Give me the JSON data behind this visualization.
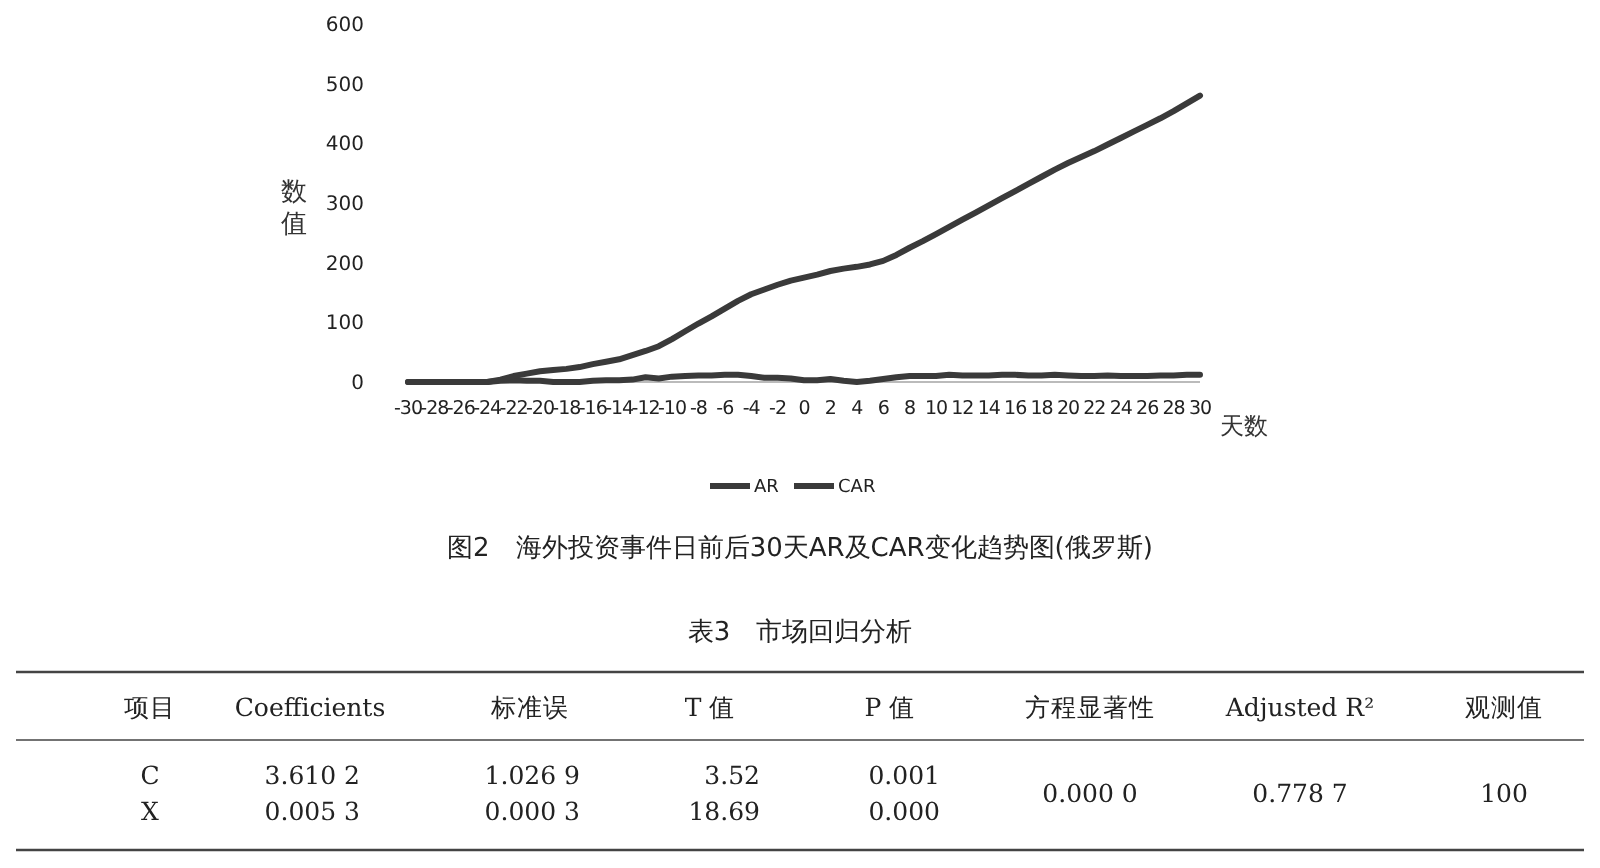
{
  "chart_data": [
    {
      "type": "line",
      "title": "图2　海外投资事件日前后30天AR及CAR变化趋势图(俄罗斯)",
      "xlabel": "天数",
      "ylabel": "数值",
      "x": [
        -30,
        -29,
        -28,
        -27,
        -26,
        -25,
        -24,
        -23,
        -22,
        -21,
        -20,
        -19,
        -18,
        -17,
        -16,
        -15,
        -14,
        -13,
        -12,
        -11,
        -10,
        -9,
        -8,
        -7,
        -6,
        -5,
        -4,
        -3,
        -2,
        -1,
        0,
        1,
        2,
        3,
        4,
        5,
        6,
        7,
        8,
        9,
        10,
        11,
        12,
        13,
        14,
        15,
        16,
        17,
        18,
        19,
        20,
        21,
        22,
        23,
        24,
        25,
        26,
        27,
        28,
        29,
        30
      ],
      "series": [
        {
          "name": "AR",
          "color": "#3a3a3a",
          "values": [
            0,
            0,
            0,
            0,
            0,
            0,
            0,
            2,
            3,
            2,
            2,
            0,
            0,
            0,
            2,
            3,
            3,
            4,
            8,
            6,
            9,
            10,
            11,
            11,
            12,
            12,
            10,
            7,
            7,
            6,
            3,
            3,
            5,
            2,
            0,
            2,
            5,
            8,
            10,
            10,
            10,
            12,
            11,
            11,
            11,
            12,
            12,
            11,
            11,
            12,
            11,
            10,
            10,
            11,
            10,
            10,
            10,
            11,
            11,
            12,
            12
          ]
        },
        {
          "name": "CAR",
          "color": "#3a3a3a",
          "values": [
            0,
            0,
            0,
            0,
            0,
            0,
            0,
            4,
            10,
            14,
            18,
            20,
            22,
            25,
            30,
            34,
            38,
            45,
            52,
            60,
            72,
            85,
            98,
            110,
            123,
            136,
            147,
            155,
            163,
            170,
            175,
            180,
            186,
            190,
            193,
            197,
            203,
            213,
            225,
            236,
            248,
            260,
            272,
            284,
            296,
            308,
            320,
            332,
            344,
            356,
            367,
            377,
            387,
            398,
            409,
            420,
            431,
            442,
            454,
            467,
            480
          ]
        }
      ],
      "xlim": [
        -30,
        30
      ],
      "xticks": [
        -30,
        -28,
        -26,
        -24,
        -22,
        -20,
        -18,
        -16,
        -14,
        -12,
        -10,
        -8,
        -6,
        -4,
        -2,
        0,
        2,
        4,
        6,
        8,
        10,
        12,
        14,
        16,
        18,
        20,
        22,
        24,
        26,
        28,
        30
      ],
      "ylim": [
        0,
        600
      ],
      "yticks": [
        0,
        100,
        200,
        300,
        400,
        500,
        600
      ],
      "grid": false,
      "legend": "bottom",
      "line_style": "solid",
      "marker": "none"
    },
    {
      "type": "other",
      "title": "表3　市场回归分析",
      "categories": [
        "项目",
        "Coefficients",
        "标准误",
        "T 值",
        "P 值",
        "方程显著性",
        "Adjusted R²",
        "观测值"
      ],
      "cell_labels": [
        [
          "C",
          "3.610 2",
          "1.026 9",
          "3.52",
          "0.001",
          "0.000 0",
          "0.778 7",
          "100"
        ],
        [
          "X",
          "0.005 3",
          "0.000 3",
          "18.69",
          "0.000",
          null,
          null,
          null
        ]
      ]
    }
  ]
}
